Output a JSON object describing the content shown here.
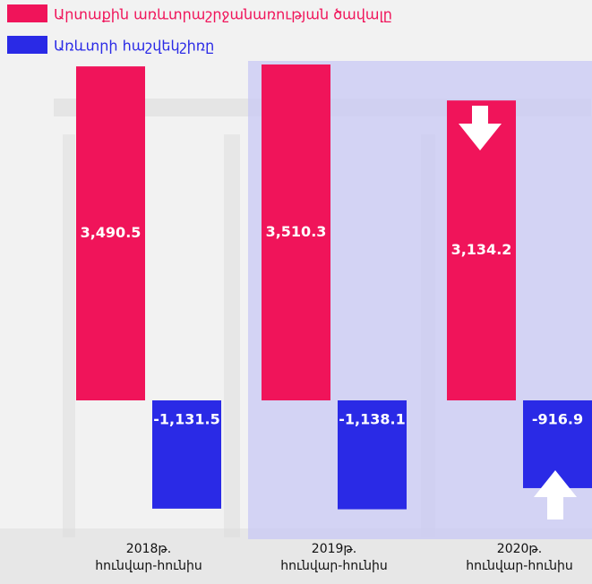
{
  "chart_data": {
    "type": "bar",
    "categories": [
      "2018թ.\nհունվար-հունիս",
      "2019թ.\nհունվար-հունիս",
      "2020թ.\nհունվար-հունիս"
    ],
    "series": [
      {
        "name": "Արտաքին առևտրաշրջանառության ծավալը",
        "color": "#f0145a",
        "values": [
          3490.5,
          3510.3,
          3134.2
        ],
        "value_labels": [
          "3,490.5",
          "3,510.3",
          "3,134.2"
        ]
      },
      {
        "name": "Առևտրի հաշվեկշիռը",
        "color": "#2a2ae6",
        "values": [
          -1131.5,
          -1138.1,
          -916.9
        ],
        "value_labels": [
          "-1,131.5",
          "-1,138.1",
          "-916.9"
        ]
      }
    ]
  }
}
